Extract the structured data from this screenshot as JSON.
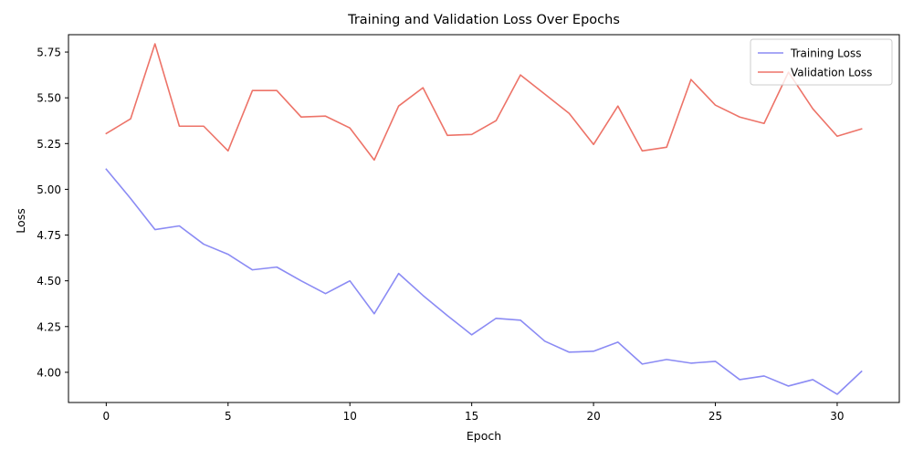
{
  "chart_data": {
    "type": "line",
    "title": "Training and Validation Loss Over Epochs",
    "xlabel": "Epoch",
    "ylabel": "Loss",
    "xlim": [
      -1.55,
      32.55
    ],
    "ylim": [
      3.835,
      5.845
    ],
    "xticks": [
      0,
      5,
      10,
      15,
      20,
      25,
      30
    ],
    "xtick_labels": [
      "0",
      "5",
      "10",
      "15",
      "20",
      "25",
      "30"
    ],
    "yticks": [
      4.0,
      4.25,
      4.5,
      4.75,
      5.0,
      5.25,
      5.5,
      5.75
    ],
    "ytick_labels": [
      "4.00",
      "4.25",
      "4.50",
      "4.75",
      "5.00",
      "5.25",
      "5.50",
      "5.75"
    ],
    "grid": false,
    "legend_position": "top-right",
    "x": [
      0,
      1,
      2,
      3,
      4,
      5,
      6,
      7,
      8,
      9,
      10,
      11,
      12,
      13,
      14,
      15,
      16,
      17,
      18,
      19,
      20,
      21,
      22,
      23,
      24,
      25,
      26,
      27,
      28,
      29,
      30,
      31
    ],
    "series": [
      {
        "name": "Training Loss",
        "color": "#8b8bf4",
        "values": [
          5.11,
          4.95,
          4.78,
          4.8,
          4.7,
          4.645,
          4.56,
          4.575,
          4.5,
          4.43,
          4.5,
          4.32,
          4.54,
          4.42,
          4.31,
          4.205,
          4.295,
          4.285,
          4.17,
          4.11,
          4.115,
          4.165,
          4.045,
          4.07,
          4.05,
          4.06,
          3.96,
          3.98,
          3.925,
          3.96,
          3.88,
          4.005
        ]
      },
      {
        "name": "Validation Loss",
        "color": "#ed7368",
        "values": [
          5.305,
          5.385,
          5.795,
          5.345,
          5.345,
          5.21,
          5.54,
          5.54,
          5.395,
          5.4,
          5.335,
          5.16,
          5.455,
          5.555,
          5.295,
          5.3,
          5.375,
          5.625,
          5.52,
          5.415,
          5.245,
          5.455,
          5.21,
          5.23,
          5.6,
          5.46,
          5.395,
          5.36,
          5.64,
          5.44,
          5.29,
          5.33
        ]
      }
    ]
  }
}
